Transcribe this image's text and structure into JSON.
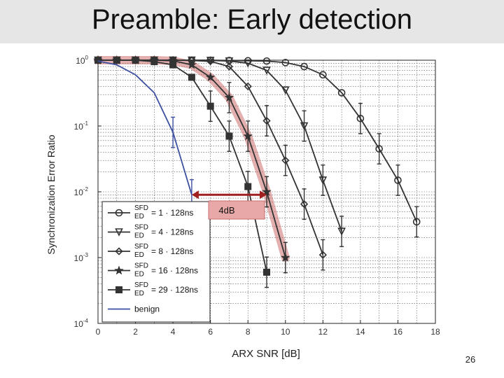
{
  "slide": {
    "title": "Preamble: Early detection",
    "page_number": "26"
  },
  "chart_data": {
    "type": "line",
    "xlabel": "ARX SNR [dB]",
    "ylabel": "Synchronization  Error Ratio",
    "xlim": [
      0,
      18
    ],
    "ylim": [
      0.0001,
      1
    ],
    "y_scale": "log",
    "grid": true,
    "x_ticks": [
      "0",
      "2",
      "4",
      "6",
      "8",
      "10",
      "12",
      "14",
      "16",
      "18"
    ],
    "y_ticks": [
      {
        "value": 1,
        "base": "10",
        "exp": "0"
      },
      {
        "value": 0.1,
        "base": "10",
        "exp": "-1"
      },
      {
        "value": 0.01,
        "base": "10",
        "exp": "-2"
      },
      {
        "value": 0.001,
        "base": "10",
        "exp": "-3"
      },
      {
        "value": 0.0001,
        "base": "10",
        "exp": "-4"
      }
    ],
    "legend_position": "bottom-left",
    "series": [
      {
        "label_top": "SFD",
        "label_bot": "ED",
        "label_val": "= 1 · 128ns",
        "marker": "circle",
        "color": "#333333",
        "x": [
          0,
          1,
          2,
          3,
          4,
          5,
          6,
          7,
          8,
          9,
          10,
          11,
          12,
          13,
          14,
          15,
          16,
          17
        ],
        "y": [
          1,
          1,
          1,
          1,
          1,
          1,
          1,
          0.99,
          0.98,
          0.97,
          0.92,
          0.8,
          0.6,
          0.32,
          0.13,
          0.045,
          0.015,
          0.0035
        ]
      },
      {
        "label_top": "SFD",
        "label_bot": "ED",
        "label_val": "= 4 · 128ns",
        "marker": "triangle-down",
        "color": "#333333",
        "x": [
          0,
          1,
          2,
          3,
          4,
          5,
          6,
          7,
          8,
          9,
          10,
          11,
          12,
          13
        ],
        "y": [
          1,
          1,
          1,
          1,
          1,
          1,
          0.99,
          0.97,
          0.9,
          0.7,
          0.35,
          0.1,
          0.015,
          0.0025
        ]
      },
      {
        "label_top": "SFD",
        "label_bot": "ED",
        "label_val": "= 8 · 128ns",
        "marker": "diamond",
        "color": "#333333",
        "x": [
          0,
          1,
          2,
          3,
          4,
          5,
          6,
          7,
          8,
          9,
          10,
          11,
          12
        ],
        "y": [
          1,
          1,
          1,
          1,
          1,
          0.99,
          0.96,
          0.8,
          0.4,
          0.12,
          0.03,
          0.0065,
          0.0011
        ]
      },
      {
        "label_top": "SFD",
        "label_bot": "ED",
        "label_val": "= 16 · 128ns",
        "marker": "star",
        "color": "#333333",
        "x": [
          0,
          1,
          2,
          3,
          4,
          5,
          6,
          7,
          8,
          9,
          10
        ],
        "y": [
          1,
          1,
          1,
          1,
          0.98,
          0.85,
          0.55,
          0.27,
          0.07,
          0.01,
          0.001
        ]
      },
      {
        "label_top": "SFD",
        "label_bot": "ED",
        "label_val": "= 29 · 128ns",
        "marker": "square",
        "color": "#333333",
        "x": [
          0,
          1,
          2,
          3,
          4,
          5,
          6,
          7,
          8,
          9
        ],
        "y": [
          1,
          1,
          1,
          0.95,
          0.85,
          0.55,
          0.2,
          0.07,
          0.012,
          0.0006
        ]
      },
      {
        "label_top": "",
        "label_bot": "",
        "label_val": "benign",
        "marker": "none",
        "color": "#3c4fa0",
        "x": [
          0,
          1,
          2,
          3,
          4,
          5
        ],
        "y": [
          0.97,
          0.85,
          0.6,
          0.32,
          0.08,
          0.009
        ]
      }
    ],
    "annotation": {
      "text": "4dB",
      "x1": 5,
      "x2": 9,
      "y": 0.009
    }
  }
}
